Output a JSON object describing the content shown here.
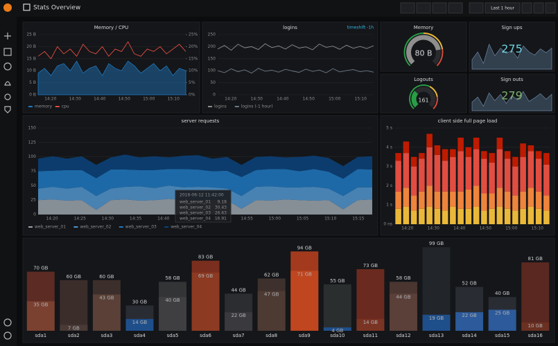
{
  "header": {
    "title": "Stats Overview",
    "time_range": "Last 1 hour"
  },
  "memory_cpu": {
    "title": "Memory / CPU",
    "type": "line",
    "ylim": [
      0,
      25
    ],
    "yticks": [
      {
        "value": 0,
        "label": "0 B"
      },
      {
        "value": 5,
        "label": "5 B"
      },
      {
        "value": 10,
        "label": "10 B"
      },
      {
        "value": 15,
        "label": "15 B"
      },
      {
        "value": 20,
        "label": "20 B"
      },
      {
        "value": 25,
        "label": "25 B"
      }
    ],
    "y2lim": [
      0,
      25
    ],
    "y2ticks": [
      {
        "value": 0,
        "label": "0%"
      },
      {
        "value": 5,
        "label": "5%"
      },
      {
        "value": 10,
        "label": "10%"
      },
      {
        "value": 15,
        "label": "15%"
      },
      {
        "value": 20,
        "label": "20%"
      },
      {
        "value": 25,
        "label": "25%"
      }
    ],
    "xtick_labels": [
      "14:20",
      "14:30",
      "14:40",
      "14:50",
      "15:00",
      "15:10"
    ],
    "series": [
      {
        "name": "memory",
        "color": "#1f78c1",
        "fill": true,
        "values": [
          9,
          11,
          8,
          12,
          13,
          10,
          14,
          9,
          11,
          12,
          8,
          13,
          11,
          10,
          14,
          12,
          9,
          11,
          13,
          10,
          12,
          8,
          11,
          10
        ]
      },
      {
        "name": "cpu",
        "color": "#e24d42",
        "axis": "y2",
        "values": [
          16,
          18,
          15,
          20,
          17,
          19,
          16,
          21,
          18,
          17,
          20,
          16,
          19,
          18,
          22,
          17,
          16,
          19,
          18,
          20,
          17,
          19,
          21,
          18
        ]
      }
    ]
  },
  "logins": {
    "title": "logins",
    "link": "timeshift -1h",
    "type": "line",
    "ylim": [
      0,
      250
    ],
    "yticks": [
      0,
      50,
      100,
      150,
      200,
      250
    ],
    "xtick_labels": [
      "14:20",
      "14:30",
      "14:40",
      "14:50",
      "15:00",
      "15:10"
    ],
    "series": [
      {
        "name": "logins",
        "color": "#8e8e8e",
        "values": [
          190,
          205,
          185,
          210,
          195,
          200,
          188,
          212,
          196,
          203,
          190,
          208,
          194,
          199,
          187,
          211,
          197,
          202,
          189,
          206,
          193,
          201,
          192,
          204
        ]
      },
      {
        "name": "logins (-1 hour)",
        "color": "#6d7a88",
        "values": [
          100,
          92,
          108,
          96,
          104,
          90,
          110,
          98,
          102,
          94,
          106,
          99,
          93,
          107,
          97,
          103,
          91,
          109,
          95,
          101,
          105,
          96,
          100,
          94
        ]
      }
    ]
  },
  "memory": {
    "title": "Memory",
    "type": "gauge",
    "lim": [
      0,
      100
    ],
    "thresholds": [
      50,
      80
    ],
    "value": 80,
    "value_label": "80 B"
  },
  "sign_ups": {
    "title": "Sign ups",
    "type": "singlestat",
    "value": 275,
    "color": "#6ed0e0",
    "sparkline": [
      260,
      270,
      255,
      280,
      265,
      275,
      268,
      272,
      262,
      278,
      270,
      266,
      274,
      269,
      275
    ]
  },
  "logouts": {
    "title": "Logouts",
    "type": "gauge",
    "lim": [
      0,
      500
    ],
    "thresholds": [
      300,
      400
    ],
    "value": 161
  },
  "sign_outs": {
    "title": "Sign outs",
    "type": "singlestat",
    "value": 279,
    "color": "#7eb26d",
    "sparkline": [
      268,
      275,
      262,
      281,
      270,
      279,
      266,
      277,
      271,
      283,
      269,
      274,
      280,
      272,
      279
    ]
  },
  "server_requests": {
    "title": "server requests",
    "type": "stacked-area",
    "ylim": [
      0,
      150
    ],
    "yticks": [
      0,
      25,
      50,
      75,
      100,
      125,
      150
    ],
    "xtick_labels": [
      "14:20",
      "14:25",
      "14:30",
      "14:35",
      "14:40",
      "14:45",
      "14:50",
      "14:55",
      "15:00",
      "15:05",
      "15:10",
      "15:15"
    ],
    "series": [
      {
        "name": "web_server_01",
        "color": "#9aa3ad",
        "values": [
          25,
          26,
          24,
          25,
          8,
          25,
          26,
          24,
          25,
          27,
          25,
          24,
          26,
          25,
          10,
          25,
          24,
          26,
          25,
          24,
          25,
          9,
          25,
          26
        ]
      },
      {
        "name": "web_server_02",
        "color": "#5195ce",
        "values": [
          20,
          22,
          21,
          23,
          24,
          20,
          22,
          25,
          21,
          23,
          22,
          24,
          21,
          20,
          22,
          23,
          25,
          21,
          22,
          24,
          20,
          23,
          22,
          21
        ]
      },
      {
        "name": "web_server_03",
        "color": "#1f78c1",
        "values": [
          30,
          28,
          32,
          29,
          31,
          33,
          30,
          28,
          31,
          29,
          32,
          30,
          28,
          31,
          33,
          29,
          30,
          32,
          28,
          31,
          29,
          30,
          32,
          31
        ]
      },
      {
        "name": "web_server_04",
        "color": "#0a437c",
        "values": [
          22,
          25,
          20,
          24,
          23,
          21,
          26,
          22,
          24,
          20,
          23,
          25,
          22,
          24,
          21,
          23,
          22,
          20,
          25,
          23,
          24,
          22,
          21,
          23
        ]
      }
    ],
    "tooltip": {
      "time": "2016-06-12 11:42:00",
      "rows": [
        {
          "name": "web_server_01",
          "value": "9.18"
        },
        {
          "name": "web_server_02",
          "value": "30.43"
        },
        {
          "name": "web_server_03",
          "value": "26.63"
        },
        {
          "name": "web_server_04",
          "value": "16.91"
        }
      ]
    }
  },
  "page_load": {
    "title": "client side full page load",
    "type": "stacked-bar",
    "ylim": [
      0,
      5
    ],
    "yticks": [
      {
        "value": 0,
        "label": "0 ns"
      },
      {
        "value": 1,
        "label": "1 s"
      },
      {
        "value": 2,
        "label": "2 s"
      },
      {
        "value": 3,
        "label": "3 s"
      },
      {
        "value": 4,
        "label": "4 s"
      },
      {
        "value": 5,
        "label": "5 s"
      }
    ],
    "xtick_labels": [
      "14:20",
      "14:30",
      "14:40",
      "14:50",
      "15:00",
      "15:10"
    ],
    "series": [
      {
        "color": "#eab839",
        "values": [
          0.8,
          0.9,
          0.7,
          0.8,
          0.9,
          0.8,
          0.7,
          0.9,
          0.8,
          0.8,
          0.9,
          0.7,
          0.8,
          0.9,
          0.8,
          0.7,
          0.8,
          0.9,
          0.8,
          0.7
        ]
      },
      {
        "color": "#ef843c",
        "values": [
          0.9,
          1.0,
          0.8,
          0.9,
          1.1,
          0.9,
          1.0,
          0.8,
          0.9,
          1.0,
          1.1,
          0.9,
          0.8,
          1.0,
          0.9,
          0.8,
          0.9,
          1.0,
          0.9,
          0.8
        ]
      },
      {
        "color": "#e24d42",
        "values": [
          1.6,
          1.8,
          1.5,
          1.7,
          2.0,
          1.9,
          1.6,
          1.8,
          2.1,
          1.7,
          1.9,
          1.8,
          1.6,
          2.0,
          1.7,
          1.5,
          1.8,
          1.9,
          1.7,
          1.6
        ]
      },
      {
        "color": "#bf1b00",
        "values": [
          0.4,
          0.6,
          0.5,
          0.3,
          0.7,
          0.5,
          0.6,
          0.4,
          0.7,
          0.5,
          0.6,
          0.4,
          0.5,
          0.6,
          0.4,
          0.5,
          0.7,
          0.3,
          0.4,
          0.6
        ]
      }
    ]
  },
  "disks": {
    "type": "overlay-bar",
    "ylim": [
      0,
      100
    ],
    "categories": [
      "sda1",
      "sda2",
      "sda3",
      "sda4",
      "sda5",
      "sda6",
      "sda7",
      "sda8",
      "sda9",
      "sda10",
      "sda11",
      "sda12",
      "sda13",
      "sda14",
      "sda15",
      "sda16"
    ],
    "series": [
      {
        "values": [
          70,
          60,
          60,
          30,
          58,
          83,
          44,
          62,
          94,
          55,
          73,
          58,
          99,
          52,
          40,
          81
        ],
        "value_labels": [
          "70 GB",
          "60 GB",
          "60 GB",
          "30 GB",
          "58 GB",
          "83 GB",
          "44 GB",
          "62 GB",
          "94 GB",
          "55 GB",
          "73 GB",
          "58 GB",
          "99 GB",
          "52 GB",
          "40 GB",
          "81 GB"
        ],
        "colors": [
          "#5c2b23",
          "#3b2d2a",
          "#3c2e2b",
          "#2a2c33",
          "#333436",
          "#7a2e1e",
          "#2b2d30",
          "#3e302d",
          "#a33a1e",
          "#2a2e2e",
          "#6b2a20",
          "#4a3530",
          "#222529",
          "#2a2c33",
          "#2a2c33",
          "#5a2820"
        ]
      },
      {
        "values": [
          35,
          7,
          43,
          14,
          40,
          69,
          22,
          47,
          71,
          4,
          14,
          44,
          19,
          22,
          25,
          10
        ],
        "value_labels": [
          "35 GB",
          "7 GB",
          "43 GB",
          "14 GB",
          "40 GB",
          "69 GB",
          "22 GB",
          "47 GB",
          "71 GB",
          "4 GB",
          "14 GB",
          "44 GB",
          "19 GB",
          "22 GB",
          "25 GB",
          "10 GB"
        ],
        "colors": [
          "#7a4030",
          "#4a3a36",
          "#5a4036",
          "#1f4f8a",
          "#3f3f41",
          "#8c3a22",
          "#3a3a3e",
          "#4d3a33",
          "#c0461f",
          "#1f4f8a",
          "#7a3424",
          "#5a4038",
          "#1f4f8a",
          "#2c5a9a",
          "#2c5a9a",
          "#6a3022"
        ]
      }
    ]
  }
}
